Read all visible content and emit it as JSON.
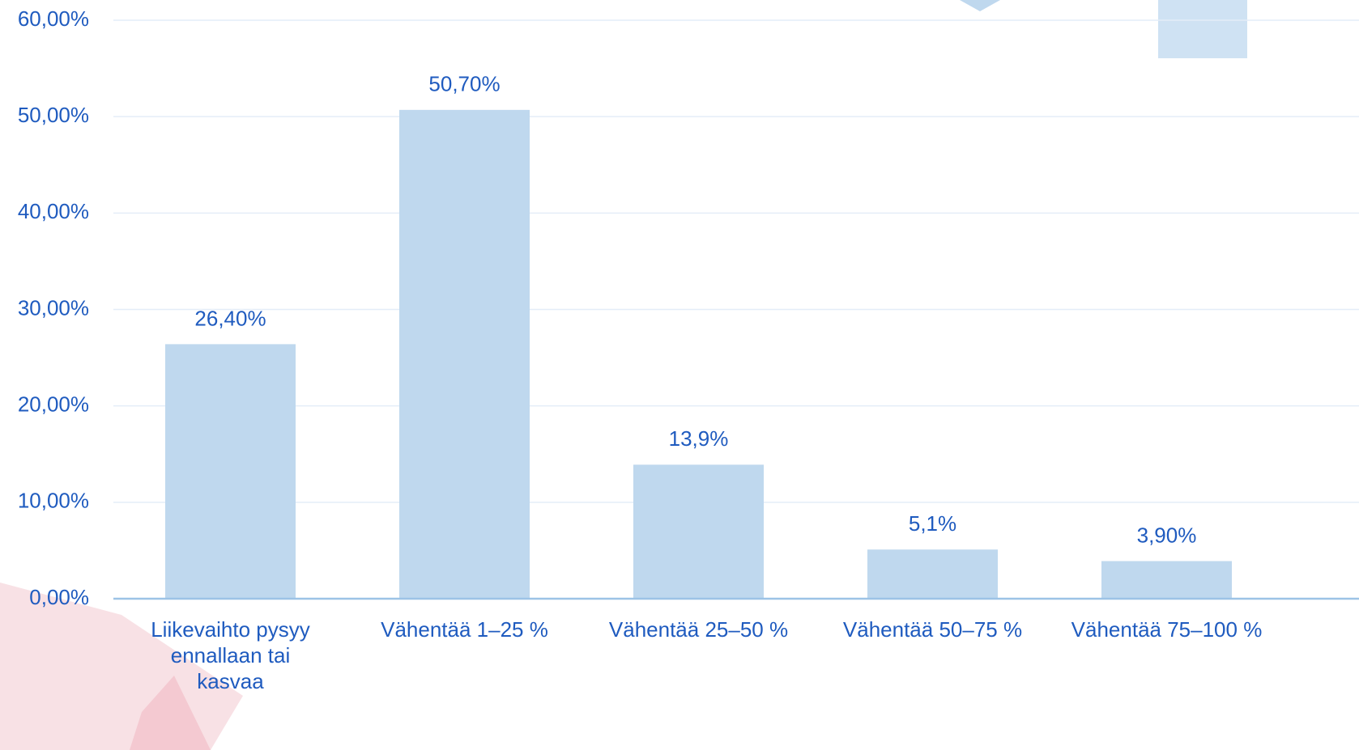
{
  "chart_data": {
    "type": "bar",
    "categories": [
      "Liikevaihto pysyy ennallaan tai kasvaa",
      "Vähentää 1–25 %",
      "Vähentää 25–50 %",
      "Vähentää 50–75 %",
      "Vähentää 75–100 %"
    ],
    "values": [
      26.4,
      50.7,
      13.9,
      5.1,
      3.9
    ],
    "value_labels": [
      "26,40%",
      "50,70%",
      "13,9%",
      "5,1%",
      "3,90%"
    ],
    "color": "#bfd8ee",
    "ylim": [
      0,
      60
    ],
    "yticks": [
      {
        "value": 0,
        "label": "0,00%"
      },
      {
        "value": 10,
        "label": "10,00%"
      },
      {
        "value": 20,
        "label": "20,00%"
      },
      {
        "value": 30,
        "label": "30,00%"
      },
      {
        "value": 40,
        "label": "40,00%"
      },
      {
        "value": 50,
        "label": "50,00%"
      },
      {
        "value": 60,
        "label": "60,00%"
      }
    ],
    "grid": true
  }
}
